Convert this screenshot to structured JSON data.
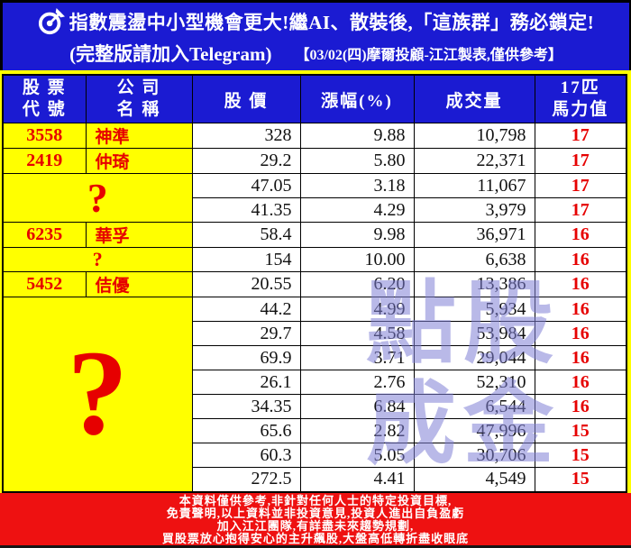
{
  "banner": {
    "icon": "dart-target-icon",
    "line1": "指數震盪中小型機會更大!繼AI、散裝後,「這族群」務必鎖定!",
    "line2_left": "(完整版請加入Telegram)",
    "line2_right": "【03/02(四)摩爾投顧-江江製表,僅供參考】"
  },
  "table": {
    "headers": {
      "code": [
        "股 票",
        "代 號"
      ],
      "name": [
        "公 司",
        "名 稱"
      ],
      "price": "股 價",
      "change": "漲幅(%)",
      "volume": "成交量",
      "power": [
        "17匹",
        "馬力值"
      ]
    },
    "rows": [
      {
        "code": "3558",
        "name": "神準",
        "price": "328",
        "change": "9.88",
        "volume": "10,798",
        "power": "17"
      },
      {
        "code": "2419",
        "name": "仲琦",
        "price": "29.2",
        "change": "5.80",
        "volume": "22,371",
        "power": "17"
      },
      {
        "mystery": {
          "label": "?",
          "size": "medium",
          "rows": 2
        },
        "price": "47.05",
        "change": "3.18",
        "volume": "11,067",
        "power": "17"
      },
      {
        "mystery_continued": true,
        "price": "41.35",
        "change": "4.29",
        "volume": "3,979",
        "power": "17"
      },
      {
        "code": "6235",
        "name": "華孚",
        "price": "58.4",
        "change": "9.98",
        "volume": "36,971",
        "power": "16"
      },
      {
        "mystery": {
          "label": "?",
          "size": "small",
          "rows": 1
        },
        "price": "154",
        "change": "10.00",
        "volume": "6,638",
        "power": "16"
      },
      {
        "code": "5452",
        "name": "佶優",
        "price": "20.55",
        "change": "6.20",
        "volume": "13,386",
        "power": "16"
      },
      {
        "mystery": {
          "label": "?",
          "size": "large",
          "rows": 8
        },
        "price": "44.2",
        "change": "4.99",
        "volume": "5,934",
        "power": "16"
      },
      {
        "mystery_continued": true,
        "price": "29.7",
        "change": "4.58",
        "volume": "53,984",
        "power": "16"
      },
      {
        "mystery_continued": true,
        "price": "69.9",
        "change": "3.71",
        "volume": "29,044",
        "power": "16"
      },
      {
        "mystery_continued": true,
        "price": "26.1",
        "change": "2.76",
        "volume": "52,310",
        "power": "16"
      },
      {
        "mystery_continued": true,
        "price": "34.35",
        "change": "6.84",
        "volume": "6,544",
        "power": "16"
      },
      {
        "mystery_continued": true,
        "price": "65.6",
        "change": "2.82",
        "volume": "47,996",
        "power": "15"
      },
      {
        "mystery_continued": true,
        "price": "60.3",
        "change": "5.05",
        "volume": "30,706",
        "power": "15"
      },
      {
        "mystery_continued": true,
        "price": "272.5",
        "change": "4.41",
        "volume": "4,549",
        "power": "15"
      }
    ]
  },
  "watermark": {
    "chars": [
      "點",
      "股",
      "成",
      "金"
    ]
  },
  "footer": {
    "lines": [
      "本資料僅供參考,非針對任何人士的特定投資目標,",
      "免責聲明,以上資料並非投資意見,投資人進出自負盈虧",
      "加入江江團隊,有詳盡未來趨勢規劃,",
      "買股票放心抱得安心的主升飆股,大盤高低轉折盡收眼底"
    ]
  },
  "colors": {
    "banner_blue": "#1b1bd2",
    "table_yellow": "#ffff00",
    "alert_red": "#ee1111",
    "text_red": "#e60000",
    "watermark_purple": "#8080d6"
  },
  "chart_data": {
    "type": "table",
    "title": "指數震盪中小型機會更大!繼AI、散裝後,「這族群」務必鎖定!",
    "columns": [
      "股票代號",
      "公司名稱",
      "股價",
      "漲幅(%)",
      "成交量",
      "17匹馬力值"
    ],
    "rows": [
      [
        "3558",
        "神準",
        328,
        9.88,
        10798,
        17
      ],
      [
        "2419",
        "仲琦",
        29.2,
        5.8,
        22371,
        17
      ],
      [
        "?",
        "?",
        47.05,
        3.18,
        11067,
        17
      ],
      [
        "?",
        "?",
        41.35,
        4.29,
        3979,
        17
      ],
      [
        "6235",
        "華孚",
        58.4,
        9.98,
        36971,
        16
      ],
      [
        "?",
        "?",
        154,
        10.0,
        6638,
        16
      ],
      [
        "5452",
        "佶優",
        20.55,
        6.2,
        13386,
        16
      ],
      [
        "?",
        "?",
        44.2,
        4.99,
        5934,
        16
      ],
      [
        "?",
        "?",
        29.7,
        4.58,
        53984,
        16
      ],
      [
        "?",
        "?",
        69.9,
        3.71,
        29044,
        16
      ],
      [
        "?",
        "?",
        26.1,
        2.76,
        52310,
        16
      ],
      [
        "?",
        "?",
        34.35,
        6.84,
        6544,
        16
      ],
      [
        "?",
        "?",
        65.6,
        2.82,
        47996,
        15
      ],
      [
        "?",
        "?",
        60.3,
        5.05,
        30706,
        15
      ],
      [
        "?",
        "?",
        272.5,
        4.41,
        4549,
        15
      ]
    ]
  }
}
